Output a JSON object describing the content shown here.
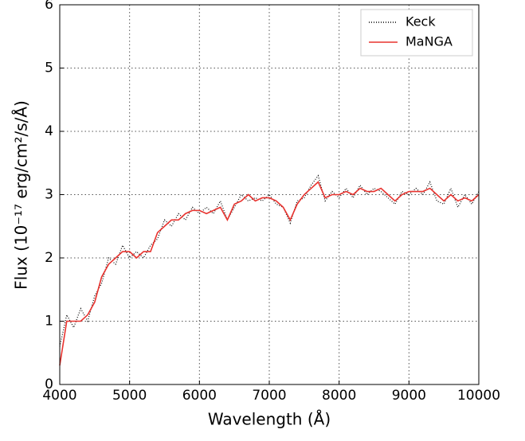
{
  "chart_data": {
    "type": "line",
    "xlabel": "Wavelength (Å)",
    "ylabel": "Flux (10⁻¹⁷ erg/cm²/s/Å)",
    "x": [
      4000,
      4100,
      4200,
      4300,
      4400,
      4500,
      4600,
      4700,
      4800,
      4900,
      5000,
      5100,
      5200,
      5300,
      5400,
      5500,
      5600,
      5700,
      5800,
      5900,
      6000,
      6100,
      6200,
      6300,
      6400,
      6500,
      6600,
      6700,
      6800,
      6900,
      7000,
      7100,
      7200,
      7300,
      7400,
      7500,
      7600,
      7700,
      7800,
      7900,
      8000,
      8100,
      8200,
      8300,
      8400,
      8500,
      8600,
      8700,
      8800,
      8900,
      9000,
      9100,
      9200,
      9300,
      9400,
      9500,
      9600,
      9700,
      9800,
      9900,
      10000
    ],
    "series": [
      {
        "name": "Keck",
        "color": "#000000",
        "style": "dotted",
        "values": [
          0.6,
          1.1,
          0.9,
          1.2,
          1.0,
          1.4,
          1.6,
          2.0,
          1.9,
          2.2,
          2.0,
          2.1,
          2.0,
          2.2,
          2.3,
          2.6,
          2.5,
          2.7,
          2.6,
          2.8,
          2.7,
          2.8,
          2.7,
          2.9,
          2.6,
          2.8,
          3.0,
          2.9,
          2.95,
          2.9,
          3.0,
          2.85,
          2.8,
          2.55,
          2.9,
          2.95,
          3.15,
          3.3,
          2.9,
          3.05,
          2.95,
          3.1,
          2.95,
          3.15,
          3.0,
          3.1,
          3.05,
          2.95,
          2.85,
          3.05,
          3.0,
          3.1,
          3.0,
          3.2,
          2.9,
          2.85,
          3.1,
          2.8,
          3.0,
          2.85,
          3.05
        ]
      },
      {
        "name": "MaNGA",
        "color": "#e8332f",
        "style": "solid",
        "values": [
          0.3,
          1.0,
          1.0,
          1.0,
          1.1,
          1.3,
          1.7,
          1.9,
          2.0,
          2.1,
          2.1,
          2.0,
          2.1,
          2.1,
          2.4,
          2.5,
          2.6,
          2.6,
          2.7,
          2.75,
          2.75,
          2.7,
          2.75,
          2.8,
          2.6,
          2.85,
          2.9,
          3.0,
          2.9,
          2.95,
          2.95,
          2.9,
          2.8,
          2.6,
          2.85,
          3.0,
          3.1,
          3.2,
          2.95,
          3.0,
          3.0,
          3.05,
          3.0,
          3.1,
          3.05,
          3.05,
          3.1,
          3.0,
          2.9,
          3.0,
          3.05,
          3.05,
          3.05,
          3.1,
          3.0,
          2.9,
          3.0,
          2.9,
          2.95,
          2.9,
          3.0
        ]
      }
    ],
    "xlim": [
      4000,
      10000
    ],
    "xticks": [
      4000,
      5000,
      6000,
      7000,
      8000,
      9000,
      10000
    ],
    "ylim": [
      0,
      6
    ],
    "yticks": [
      0,
      1,
      2,
      3,
      4,
      5,
      6
    ],
    "grid": true,
    "legend": "upper right"
  }
}
